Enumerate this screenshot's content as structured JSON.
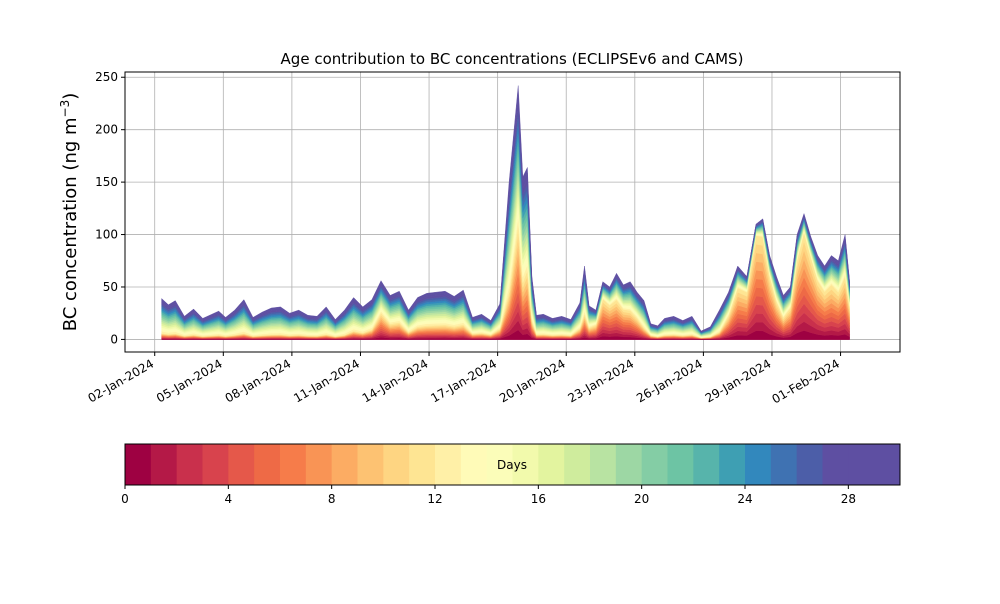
{
  "chart_data": {
    "type": "area",
    "title": "Age contribution to BC concentrations (ECLIPSEv6 and CAMS)",
    "ylabel_main": "BC concentration (ng m",
    "ylabel_sup": "−3",
    "ylabel_close": ")",
    "xlabel": "",
    "ylim": [
      -12,
      255
    ],
    "yticks": [
      0,
      50,
      100,
      150,
      200,
      250
    ],
    "xlim_day": [
      -0.3,
      33.6
    ],
    "xticks": [
      {
        "day": 1,
        "label": "02-Jan-2024"
      },
      {
        "day": 4,
        "label": "05-Jan-2024"
      },
      {
        "day": 7,
        "label": "08-Jan-2024"
      },
      {
        "day": 10,
        "label": "11-Jan-2024"
      },
      {
        "day": 13,
        "label": "14-Jan-2024"
      },
      {
        "day": 16,
        "label": "17-Jan-2024"
      },
      {
        "day": 19,
        "label": "20-Jan-2024"
      },
      {
        "day": 22,
        "label": "23-Jan-2024"
      },
      {
        "day": 25,
        "label": "26-Jan-2024"
      },
      {
        "day": 28,
        "label": "29-Jan-2024"
      },
      {
        "day": 31,
        "label": "01-Feb-2024"
      }
    ],
    "grid": true,
    "total_series": {
      "x_day": [
        1.3,
        1.6,
        1.9,
        2.3,
        2.7,
        3.1,
        3.5,
        3.8,
        4.1,
        4.5,
        4.9,
        5.3,
        5.7,
        6.1,
        6.5,
        6.9,
        7.3,
        7.7,
        8.1,
        8.5,
        8.9,
        9.3,
        9.7,
        10.1,
        10.5,
        10.9,
        11.3,
        11.7,
        12.1,
        12.5,
        12.9,
        13.3,
        13.7,
        14.1,
        14.5,
        14.9,
        15.3,
        15.7,
        16.1,
        16.5,
        16.9,
        17.1,
        17.3,
        17.5,
        17.7,
        18.0,
        18.4,
        18.8,
        19.2,
        19.6,
        19.8,
        20.0,
        20.3,
        20.6,
        20.9,
        21.2,
        21.5,
        21.8,
        22.1,
        22.4,
        22.7,
        23.0,
        23.3,
        23.7,
        24.1,
        24.5,
        24.9,
        25.3,
        25.7,
        26.1,
        26.5,
        26.9,
        27.3,
        27.6,
        27.9,
        28.2,
        28.5,
        28.8,
        29.1,
        29.4,
        29.7,
        30.0,
        30.3,
        30.6,
        30.9,
        31.2,
        31.4
      ],
      "total": [
        39,
        33,
        37,
        22,
        29,
        20,
        24,
        27,
        21,
        28,
        38,
        21,
        26,
        30,
        31,
        25,
        28,
        23,
        22,
        31,
        19,
        28,
        40,
        31,
        38,
        56,
        42,
        46,
        28,
        40,
        44,
        45,
        46,
        41,
        47,
        21,
        24,
        18,
        34,
        150,
        242,
        155,
        164,
        60,
        23,
        24,
        20,
        22,
        19,
        35,
        70,
        32,
        28,
        55,
        50,
        63,
        52,
        55,
        45,
        37,
        15,
        13,
        20,
        22,
        18,
        22,
        8,
        12,
        28,
        45,
        70,
        60,
        110,
        115,
        80,
        60,
        42,
        50,
        100,
        120,
        98,
        80,
        70,
        80,
        75,
        100,
        55
      ],
      "young_fraction": [
        0.15,
        0.15,
        0.15,
        0.15,
        0.15,
        0.15,
        0.15,
        0.15,
        0.15,
        0.15,
        0.15,
        0.15,
        0.15,
        0.15,
        0.15,
        0.15,
        0.15,
        0.15,
        0.15,
        0.15,
        0.15,
        0.15,
        0.2,
        0.2,
        0.25,
        0.45,
        0.35,
        0.35,
        0.25,
        0.3,
        0.3,
        0.3,
        0.3,
        0.3,
        0.3,
        0.25,
        0.25,
        0.25,
        0.3,
        0.3,
        0.45,
        0.35,
        0.4,
        0.3,
        0.2,
        0.2,
        0.2,
        0.2,
        0.2,
        0.3,
        0.35,
        0.35,
        0.5,
        0.7,
        0.65,
        0.6,
        0.55,
        0.5,
        0.45,
        0.3,
        0.25,
        0.2,
        0.2,
        0.2,
        0.2,
        0.2,
        0.2,
        0.2,
        0.25,
        0.5,
        0.7,
        0.75,
        0.9,
        0.85,
        0.75,
        0.6,
        0.5,
        0.6,
        0.75,
        0.85,
        0.8,
        0.7,
        0.65,
        0.65,
        0.6,
        0.6,
        0.55
      ]
    },
    "age_bins_days": 30,
    "colorbar": {
      "label": "Days",
      "min": 0,
      "max": 30,
      "ticks": [
        0,
        4,
        8,
        12,
        16,
        20,
        24,
        28
      ],
      "colors": [
        "#9e0142",
        "#b41947",
        "#c9304c",
        "#d8434d",
        "#e5584a",
        "#ee6a46",
        "#f67c4a",
        "#f99455",
        "#fcac63",
        "#fdc272",
        "#fed582",
        "#fee593",
        "#fff0a7",
        "#fffbb8",
        "#fbfdb9",
        "#f2faac",
        "#e3f49f",
        "#cfec9d",
        "#b8e3a2",
        "#9dd7a4",
        "#84cda5",
        "#6dc4a4",
        "#57b4ab",
        "#3e9fb3",
        "#3288bd",
        "#3f72b2",
        "#4c5ea8",
        "#5e4fa2",
        "#5e4fa2",
        "#5e4fa2"
      ]
    }
  }
}
